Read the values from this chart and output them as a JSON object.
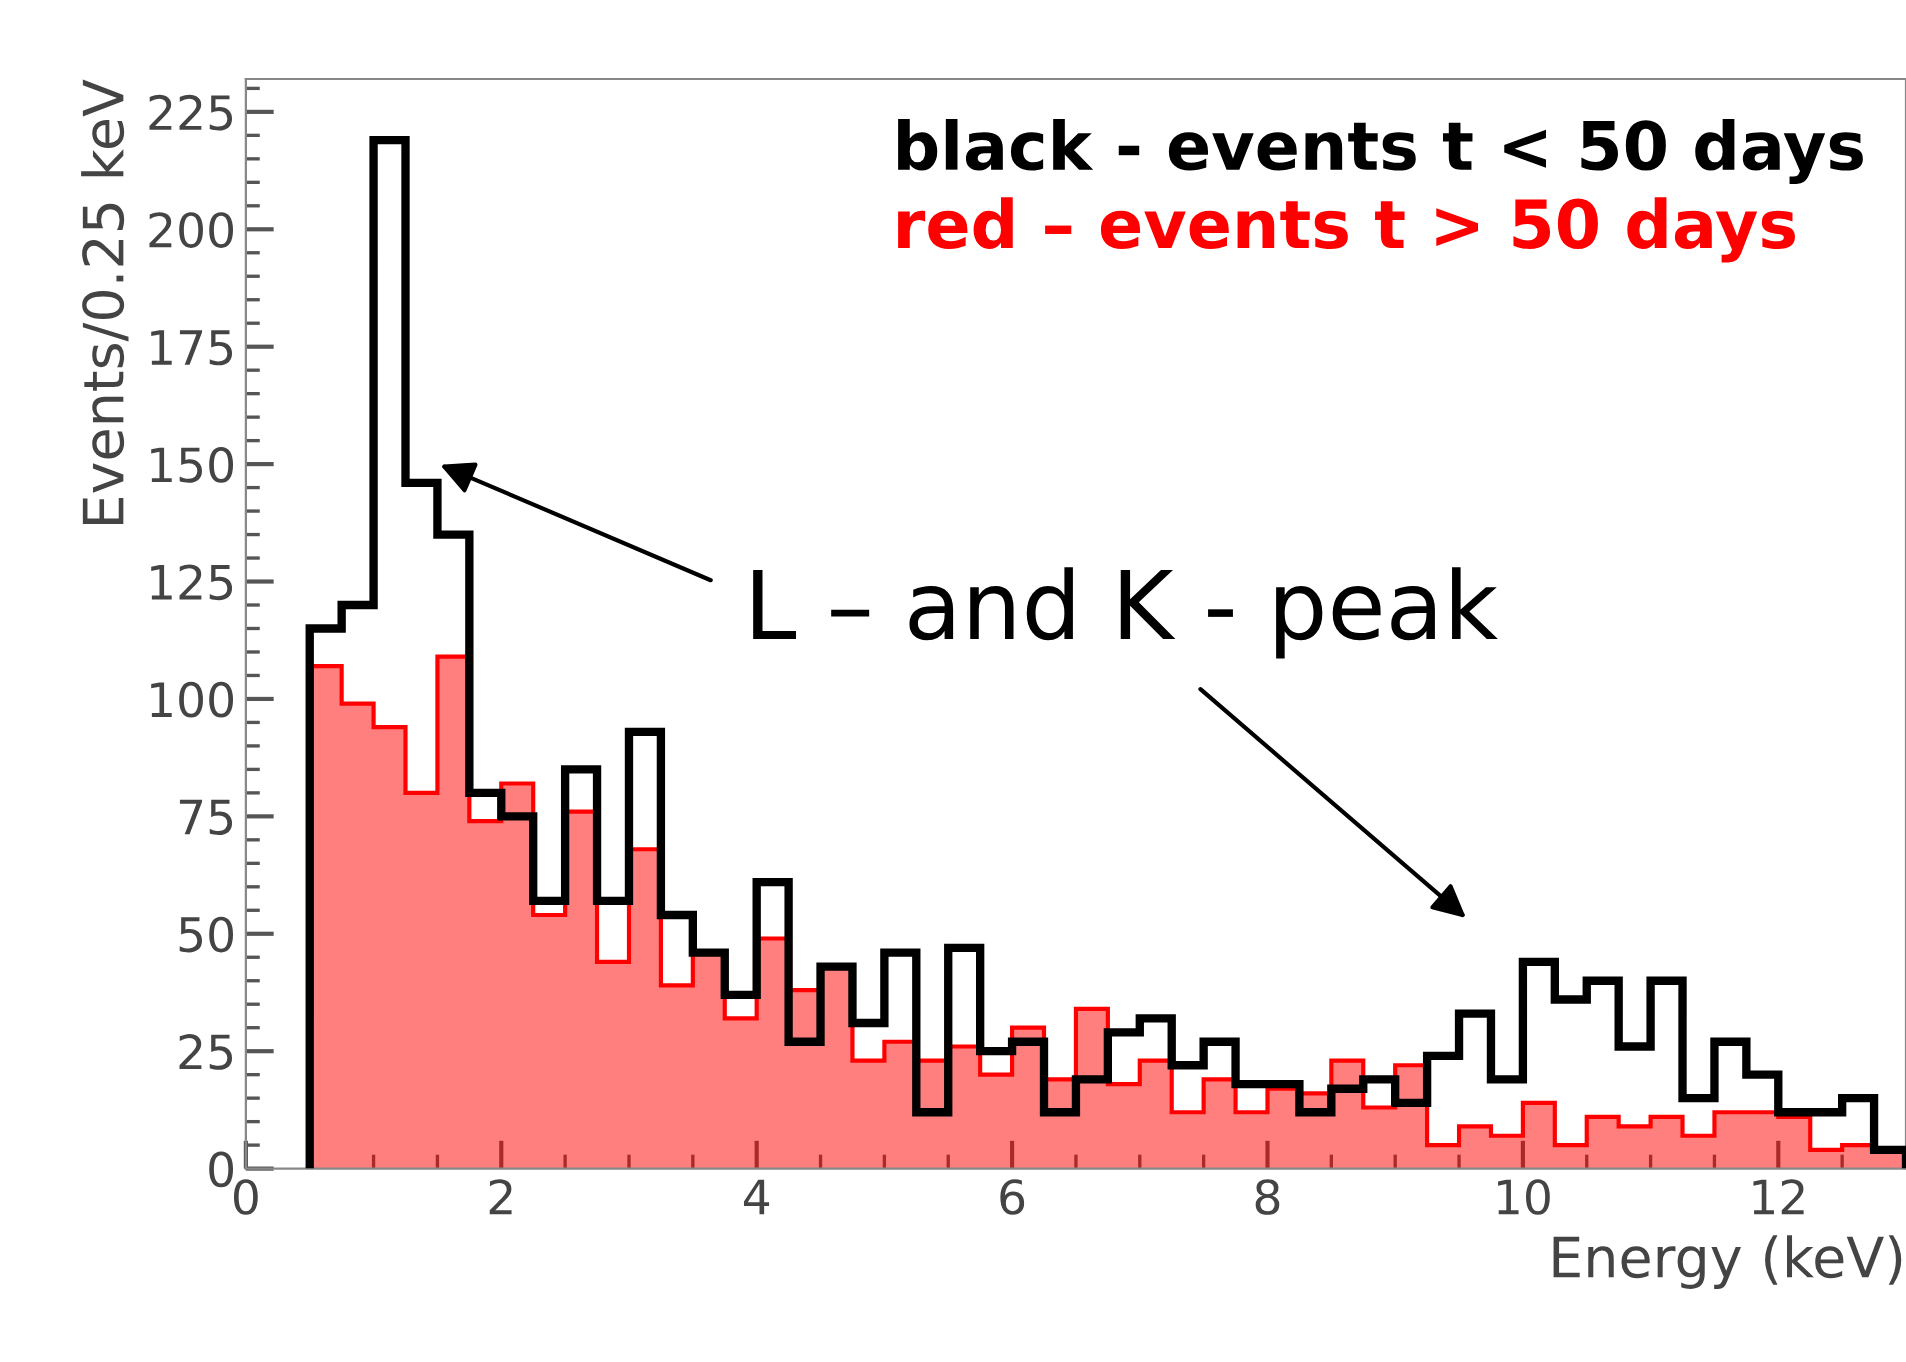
{
  "chart_data": {
    "type": "histogram",
    "xlabel": "Energy (keV)",
    "ylabel": "Events/0.25 keV",
    "bins": [
      0.5,
      0.75,
      1.0,
      1.25,
      1.5,
      1.75,
      2.0,
      2.25,
      2.5,
      2.75,
      3.0,
      3.25,
      3.5,
      3.75,
      4.0,
      4.25,
      4.5,
      4.75,
      5.0,
      5.25,
      5.5,
      5.75,
      6.0,
      6.25,
      6.5,
      6.75,
      7.0,
      7.25,
      7.5,
      7.75,
      8.0,
      8.25,
      8.5,
      8.75,
      9.0,
      9.25,
      9.5,
      9.75,
      10.0,
      10.25,
      10.5,
      10.75,
      11.0,
      11.25,
      11.5,
      11.75,
      12.0,
      12.25,
      12.5,
      12.75,
      13.0
    ],
    "series": [
      {
        "name": "black - events t < 50 days",
        "color": "#000000",
        "values": [
          115,
          120,
          219,
          146,
          135,
          80,
          75,
          57,
          85,
          57,
          93,
          54,
          46,
          37,
          61,
          27,
          43,
          31,
          46,
          12,
          47,
          25,
          27,
          12,
          19,
          29,
          32,
          22,
          27,
          18,
          18,
          12,
          17,
          19,
          14,
          24,
          33,
          19,
          44,
          36,
          40,
          26,
          40,
          15,
          27,
          20,
          12,
          12,
          15,
          4
        ]
      },
      {
        "name": "red – events t > 50 days",
        "color": "#ff0000",
        "values": [
          107,
          99,
          94,
          80,
          109,
          74,
          82,
          54,
          76,
          44,
          68,
          39,
          46,
          32,
          49,
          38,
          43,
          23,
          27,
          23,
          26,
          20,
          30,
          19,
          34,
          18,
          23,
          12,
          19,
          12,
          17,
          16,
          23,
          13,
          22,
          5,
          9,
          7,
          14,
          5,
          11,
          9,
          11,
          7,
          12,
          12,
          11,
          4,
          5,
          4
        ]
      }
    ],
    "xlim": [
      0,
      13
    ],
    "xticks": [
      0,
      2,
      4,
      6,
      8,
      10,
      12
    ],
    "ylim": [
      0,
      232
    ],
    "yticks": [
      0,
      25,
      50,
      75,
      100,
      125,
      150,
      175,
      200,
      225
    ],
    "grid": false,
    "legend": "top right",
    "annotations": [
      "L – and K - peak"
    ]
  }
}
